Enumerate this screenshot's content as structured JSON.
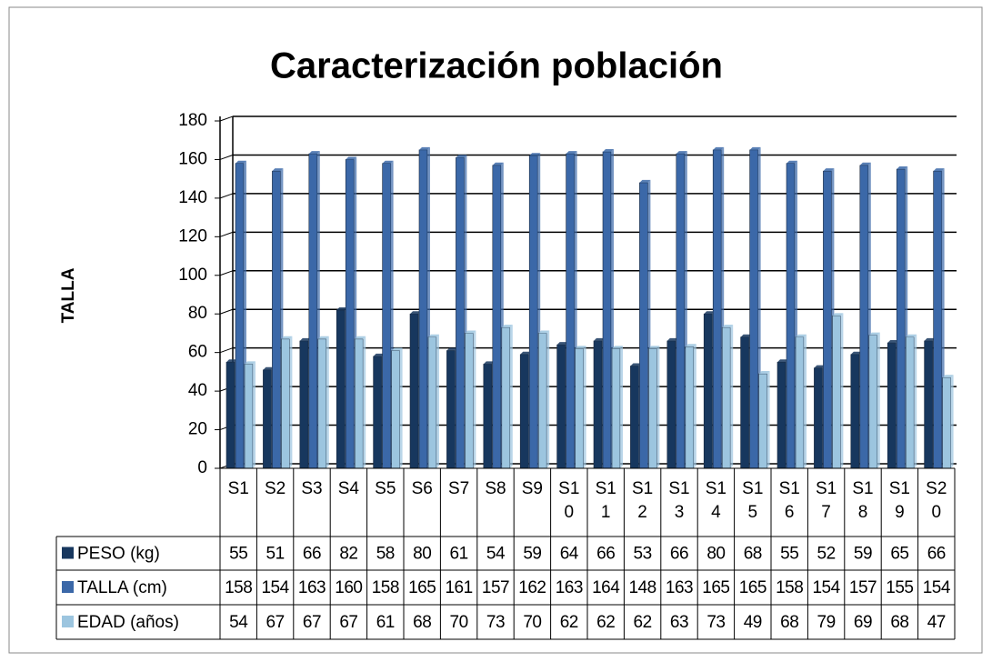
{
  "chart_data": {
    "type": "bar",
    "title": "Caracterización población",
    "y_label": "TALLA",
    "categories": [
      "S1",
      "S2",
      "S3",
      "S4",
      "S5",
      "S6",
      "S7",
      "S8",
      "S9",
      "S10",
      "S11",
      "S12",
      "S13",
      "S14",
      "S15",
      "S16",
      "S17",
      "S18",
      "S19",
      "S20"
    ],
    "series": [
      {
        "name": "PESO (kg)",
        "color": "#17375e",
        "values": [
          55,
          51,
          66,
          82,
          58,
          80,
          61,
          54,
          59,
          64,
          66,
          53,
          66,
          80,
          68,
          55,
          52,
          59,
          65,
          66
        ]
      },
      {
        "name": "TALLA (cm)",
        "color": "#3b68a8",
        "values": [
          158,
          154,
          163,
          160,
          158,
          165,
          161,
          157,
          162,
          163,
          164,
          148,
          163,
          165,
          165,
          158,
          154,
          157,
          155,
          154
        ]
      },
      {
        "name": "EDAD (años)",
        "color": "#9cc5df",
        "values": [
          54,
          67,
          67,
          67,
          61,
          68,
          70,
          73,
          70,
          62,
          62,
          62,
          63,
          73,
          49,
          68,
          79,
          69,
          68,
          47
        ]
      }
    ],
    "ylim": [
      0,
      180
    ],
    "yticks": [
      0,
      20,
      40,
      60,
      80,
      100,
      120,
      140,
      160,
      180
    ],
    "grid": true
  }
}
